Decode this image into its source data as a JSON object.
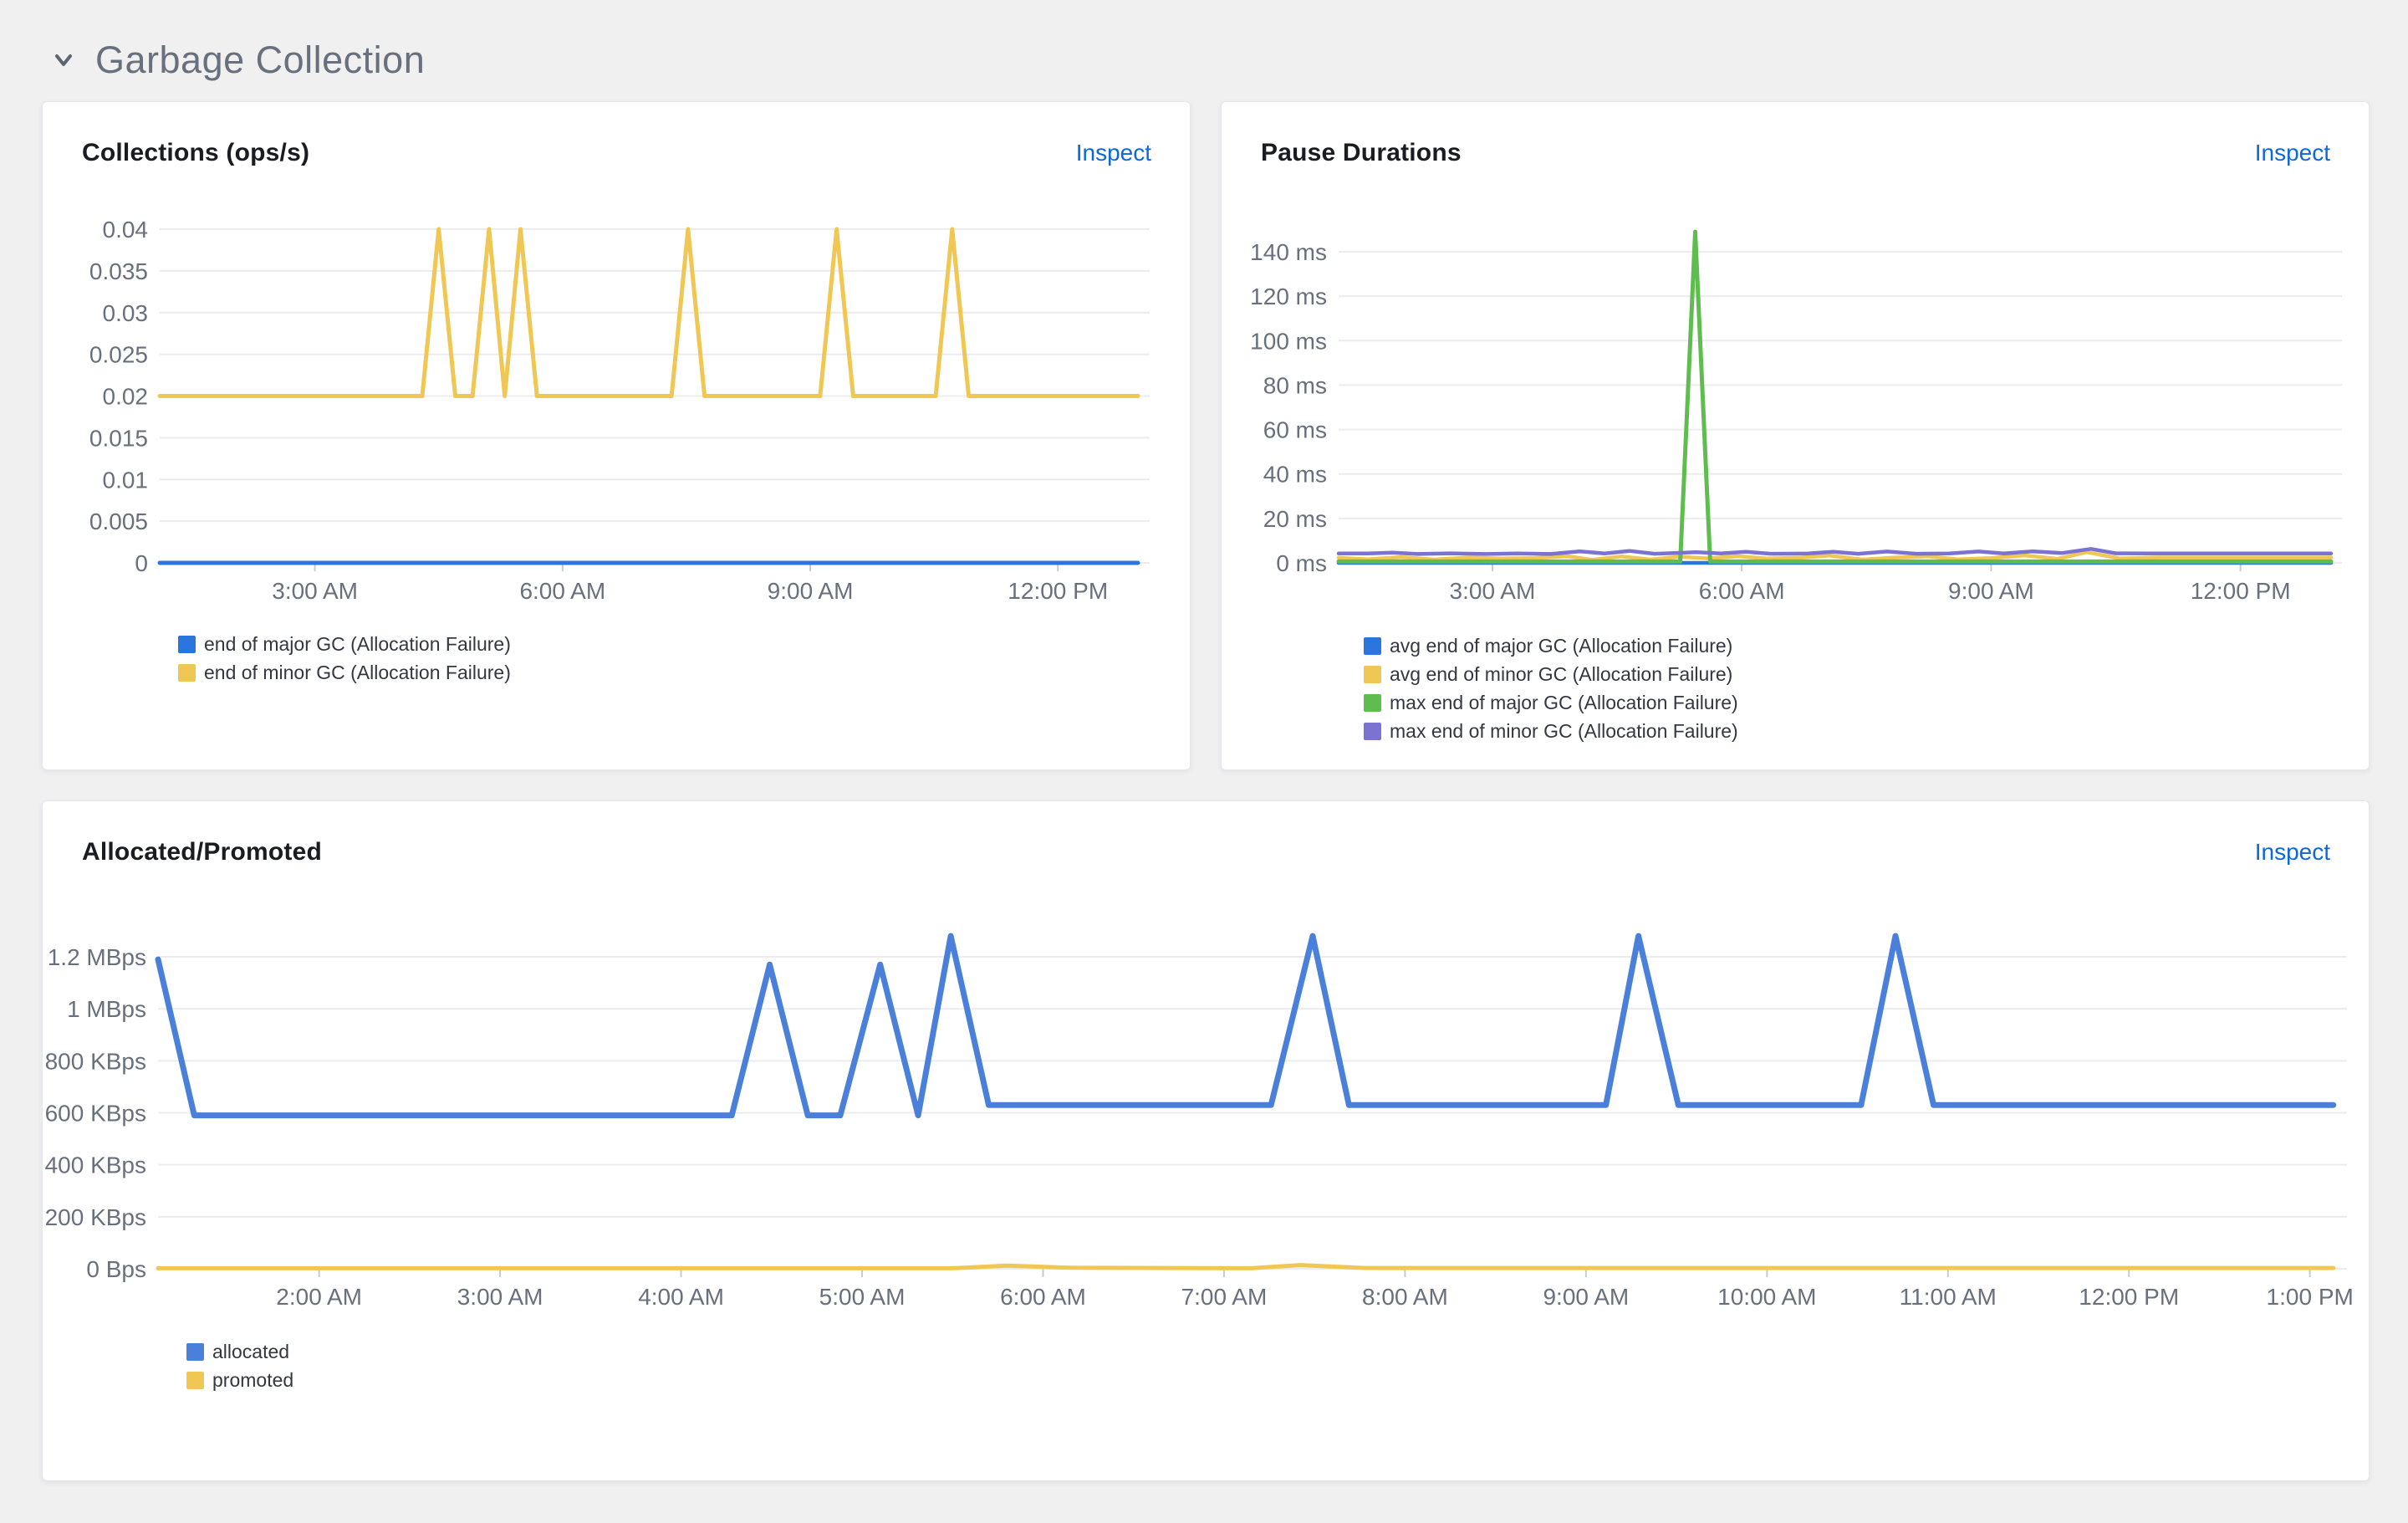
{
  "page": {
    "section": {
      "title": "Garbage Collection",
      "collapse_icon": "chevron-down-icon"
    }
  },
  "cards": [
    {
      "title": "Collections (ops/s)",
      "action_label": "Inspect"
    },
    {
      "title": "Pause Durations",
      "action_label": "Inspect"
    },
    {
      "title": "Allocated/Promoted",
      "action_label": "Inspect"
    }
  ],
  "colors": {
    "page_bg": "#f0f0f1",
    "card_bg": "#ffffff",
    "link_blue": "#0d68d9",
    "axis_text": "#69707d",
    "grid_line": "#ececef",
    "series_blue": "#3d7dd6",
    "series_yellow": "#f0c753",
    "series_green": "#5fbc4f",
    "series_purple": "#7b72d1"
  },
  "chart_data": [
    {
      "type": "line",
      "title": "Collections (ops/s)",
      "grid": true,
      "legend_position": "bottom-left",
      "x_axis": {
        "unit": "time of day (hours, decimal)",
        "range_hours": [
          1.12,
          12.97
        ],
        "ticks": [
          {
            "h": 3,
            "label": "3:00 AM"
          },
          {
            "h": 6,
            "label": "6:00 AM"
          },
          {
            "h": 9,
            "label": "9:00 AM"
          },
          {
            "h": 12,
            "label": "12:00 PM"
          }
        ]
      },
      "y_axis": {
        "range": [
          0,
          0.04
        ],
        "ticks": [
          {
            "v": 0.04,
            "label": "0.04"
          },
          {
            "v": 0.035,
            "label": "0.035"
          },
          {
            "v": 0.03,
            "label": "0.03"
          },
          {
            "v": 0.025,
            "label": "0.025"
          },
          {
            "v": 0.02,
            "label": "0.02"
          },
          {
            "v": 0.015,
            "label": "0.015"
          },
          {
            "v": 0.01,
            "label": "0.01"
          },
          {
            "v": 0.005,
            "label": "0.005"
          },
          {
            "v": 0,
            "label": "0"
          }
        ]
      },
      "series": [
        {
          "name": "end of major GC (Allocation Failure)",
          "color": "#2a76dd",
          "width": 5,
          "points": [
            [
              1.12,
              0
            ],
            [
              12.97,
              0
            ]
          ]
        },
        {
          "name": "end of minor GC (Allocation Failure)",
          "color": "#f0c753",
          "width": 5,
          "points": [
            [
              1.12,
              0.02
            ],
            [
              4.3,
              0.02
            ],
            [
              4.5,
              0.04
            ],
            [
              4.7,
              0.02
            ],
            [
              4.91,
              0.02
            ],
            [
              5.11,
              0.04
            ],
            [
              5.3,
              0.02
            ],
            [
              5.49,
              0.04
            ],
            [
              5.69,
              0.02
            ],
            [
              7.32,
              0.02
            ],
            [
              7.52,
              0.04
            ],
            [
              7.72,
              0.02
            ],
            [
              9.12,
              0.02
            ],
            [
              9.32,
              0.04
            ],
            [
              9.52,
              0.02
            ],
            [
              10.52,
              0.02
            ],
            [
              10.72,
              0.04
            ],
            [
              10.92,
              0.02
            ],
            [
              12.97,
              0.02
            ]
          ]
        }
      ]
    },
    {
      "type": "line",
      "title": "Pause Durations",
      "grid": true,
      "legend_position": "bottom-left",
      "x_axis": {
        "unit": "time of day (hours, decimal)",
        "range_hours": [
          1.15,
          13.09
        ],
        "ticks": [
          {
            "h": 3,
            "label": "3:00 AM"
          },
          {
            "h": 6,
            "label": "6:00 AM"
          },
          {
            "h": 9,
            "label": "9:00 AM"
          },
          {
            "h": 12,
            "label": "12:00 PM"
          }
        ]
      },
      "y_axis": {
        "range": [
          0,
          140
        ],
        "unit": "ms",
        "ticks": [
          {
            "v": 140,
            "label": "140 ms"
          },
          {
            "v": 120,
            "label": "120 ms"
          },
          {
            "v": 100,
            "label": "100 ms"
          },
          {
            "v": 80,
            "label": "80 ms"
          },
          {
            "v": 60,
            "label": "60 ms"
          },
          {
            "v": 40,
            "label": "40 ms"
          },
          {
            "v": 20,
            "label": "20 ms"
          },
          {
            "v": 0,
            "label": "0 ms"
          }
        ]
      },
      "series": [
        {
          "name": "avg end of major GC (Allocation Failure)",
          "color": "#2a76dd",
          "width": 4.5,
          "points": [
            [
              1.15,
              0
            ],
            [
              13.09,
              0
            ]
          ]
        },
        {
          "name": "avg end of minor GC (Allocation Failure)",
          "color": "#f0c753",
          "width": 4.5,
          "points": [
            [
              1.15,
              2.3
            ],
            [
              1.5,
              1.6
            ],
            [
              1.9,
              2.6
            ],
            [
              2.3,
              1.5
            ],
            [
              2.7,
              2.4
            ],
            [
              3.1,
              2.0
            ],
            [
              3.5,
              2.2
            ],
            [
              3.9,
              3.0
            ],
            [
              4.2,
              1.4
            ],
            [
              4.55,
              2.9
            ],
            [
              4.9,
              1.5
            ],
            [
              5.25,
              2.8
            ],
            [
              5.6,
              2.0
            ],
            [
              5.95,
              3.0
            ],
            [
              6.3,
              2.0
            ],
            [
              6.7,
              2.3
            ],
            [
              7.05,
              3.3
            ],
            [
              7.45,
              1.5
            ],
            [
              7.85,
              2.4
            ],
            [
              8.25,
              2.9
            ],
            [
              8.6,
              1.6
            ],
            [
              9.0,
              2.2
            ],
            [
              9.4,
              3.4
            ],
            [
              9.8,
              1.8
            ],
            [
              10.15,
              4.8
            ],
            [
              10.55,
              2.0
            ],
            [
              11.0,
              2.4
            ],
            [
              11.8,
              2.4
            ],
            [
              12.5,
              2.4
            ],
            [
              13.09,
              2.4
            ]
          ]
        },
        {
          "name": "max end of major GC (Allocation Failure)",
          "color": "#5fbc4f",
          "width": 5,
          "points": [
            [
              1.15,
              0.6
            ],
            [
              5.26,
              0.6
            ],
            [
              5.44,
              149
            ],
            [
              5.62,
              0.6
            ],
            [
              13.09,
              0.6
            ]
          ]
        },
        {
          "name": "max end of minor GC (Allocation Failure)",
          "color": "#7b72d1",
          "width": 4.5,
          "points": [
            [
              1.15,
              4.2
            ],
            [
              1.5,
              4.2
            ],
            [
              1.8,
              4.6
            ],
            [
              2.1,
              4.0
            ],
            [
              2.5,
              4.3
            ],
            [
              2.9,
              4.0
            ],
            [
              3.3,
              4.2
            ],
            [
              3.7,
              4.0
            ],
            [
              4.05,
              5.2
            ],
            [
              4.35,
              4.2
            ],
            [
              4.65,
              5.4
            ],
            [
              4.95,
              4.1
            ],
            [
              5.2,
              4.4
            ],
            [
              5.45,
              4.8
            ],
            [
              5.75,
              4.2
            ],
            [
              6.05,
              5.0
            ],
            [
              6.35,
              4.1
            ],
            [
              6.8,
              4.2
            ],
            [
              7.1,
              5.0
            ],
            [
              7.4,
              4.1
            ],
            [
              7.75,
              5.1
            ],
            [
              8.1,
              4.1
            ],
            [
              8.5,
              4.2
            ],
            [
              8.85,
              5.1
            ],
            [
              9.15,
              4.2
            ],
            [
              9.5,
              5.2
            ],
            [
              9.85,
              4.4
            ],
            [
              10.2,
              6.3
            ],
            [
              10.5,
              4.3
            ],
            [
              10.9,
              4.2
            ],
            [
              11.5,
              4.2
            ],
            [
              12.2,
              4.2
            ],
            [
              13.09,
              4.2
            ]
          ]
        }
      ]
    },
    {
      "type": "line",
      "title": "Allocated/Promoted",
      "grid": true,
      "legend_position": "bottom-left",
      "x_axis": {
        "unit": "time of day (hours, decimal)",
        "range_hours": [
          1.11,
          13.14
        ],
        "ticks": [
          {
            "h": 2,
            "label": "2:00 AM"
          },
          {
            "h": 3,
            "label": "3:00 AM"
          },
          {
            "h": 4,
            "label": "4:00 AM"
          },
          {
            "h": 5,
            "label": "5:00 AM"
          },
          {
            "h": 6,
            "label": "6:00 AM"
          },
          {
            "h": 7,
            "label": "7:00 AM"
          },
          {
            "h": 8,
            "label": "8:00 AM"
          },
          {
            "h": 9,
            "label": "9:00 AM"
          },
          {
            "h": 10,
            "label": "10:00 AM"
          },
          {
            "h": 11,
            "label": "11:00 AM"
          },
          {
            "h": 12,
            "label": "12:00 PM"
          },
          {
            "h": 13,
            "label": "1:00 PM"
          }
        ]
      },
      "y_axis": {
        "range": [
          0,
          1200
        ],
        "unit": "KBps",
        "ticks": [
          {
            "v": 1200,
            "label": "1.2 MBps"
          },
          {
            "v": 1000,
            "label": "1 MBps"
          },
          {
            "v": 800,
            "label": "800 KBps"
          },
          {
            "v": 600,
            "label": "600 KBps"
          },
          {
            "v": 400,
            "label": "400 KBps"
          },
          {
            "v": 200,
            "label": "200 KBps"
          },
          {
            "v": 0,
            "label": "0 Bps"
          }
        ]
      },
      "series": [
        {
          "name": "allocated",
          "color": "#4a80d9",
          "width": 7,
          "points": [
            [
              1.11,
              1190
            ],
            [
              1.31,
              590
            ],
            [
              4.28,
              590
            ],
            [
              4.49,
              1170
            ],
            [
              4.7,
              590
            ],
            [
              4.88,
              590
            ],
            [
              5.1,
              1170
            ],
            [
              5.31,
              590
            ],
            [
              5.49,
              1280
            ],
            [
              5.7,
              630
            ],
            [
              7.26,
              630
            ],
            [
              7.49,
              1280
            ],
            [
              7.69,
              630
            ],
            [
              9.11,
              630
            ],
            [
              9.29,
              1280
            ],
            [
              9.51,
              630
            ],
            [
              10.52,
              630
            ],
            [
              10.71,
              1280
            ],
            [
              10.92,
              630
            ],
            [
              13.13,
              630
            ]
          ]
        },
        {
          "name": "promoted",
          "color": "#f0c753",
          "width": 5,
          "points": [
            [
              1.11,
              2
            ],
            [
              5.5,
              2
            ],
            [
              5.8,
              12
            ],
            [
              6.15,
              4
            ],
            [
              7.15,
              2
            ],
            [
              7.42,
              14
            ],
            [
              7.78,
              3
            ],
            [
              13.13,
              3
            ]
          ]
        }
      ]
    }
  ]
}
